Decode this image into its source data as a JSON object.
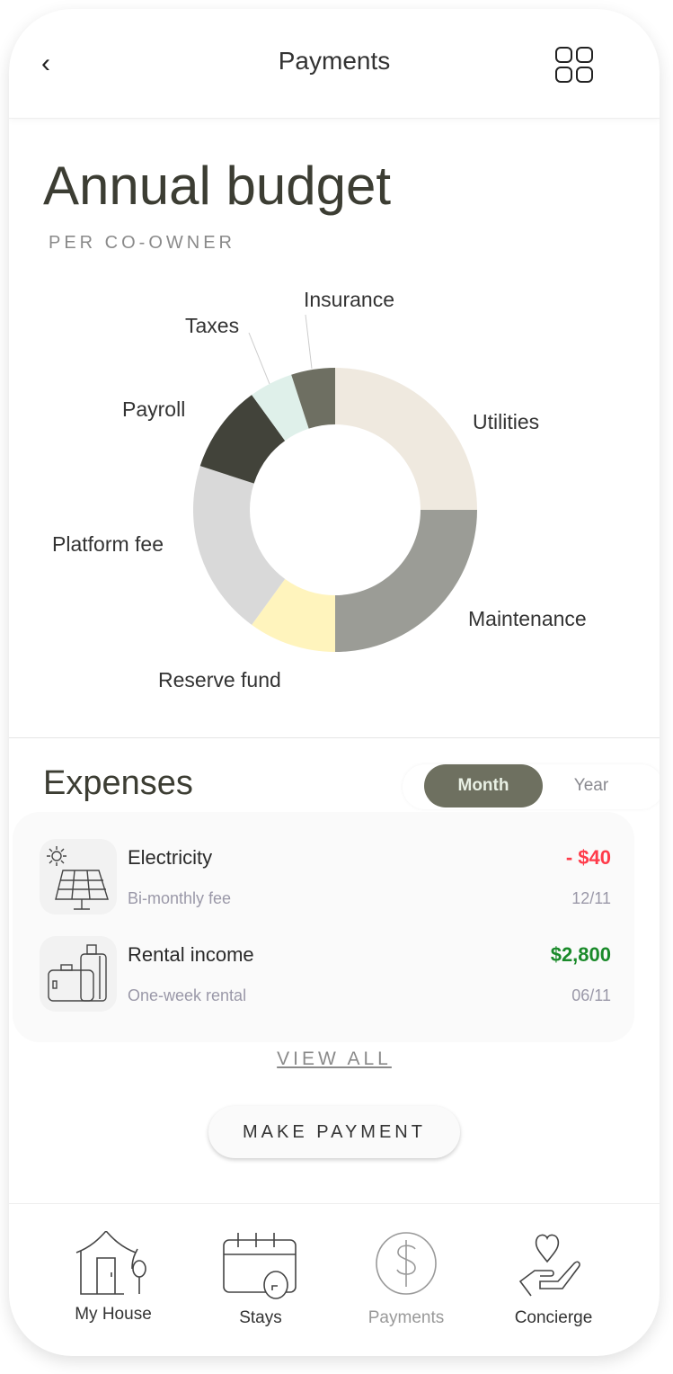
{
  "header": {
    "title": "Payments",
    "back_icon": "chevron-left-icon",
    "menu_icon": "grid-icon"
  },
  "budget": {
    "title": "Annual budget",
    "subtitle": "PER CO-OWNER"
  },
  "chart_data": {
    "type": "pie",
    "donut": true,
    "unit": "percent (estimated)",
    "categories": [
      "Utilities",
      "Maintenance",
      "Reserve fund",
      "Platform fee",
      "Payroll",
      "Taxes",
      "Insurance"
    ],
    "values": [
      25,
      25,
      10,
      20,
      10,
      5,
      5
    ],
    "colors": [
      "#efe9df",
      "#9b9c96",
      "#fff4bd",
      "#d9d9d9",
      "#42433a",
      "#dff0ea",
      "#6e6f62"
    ]
  },
  "expenses": {
    "title": "Expenses",
    "toggle": {
      "options": [
        "Month",
        "Year"
      ],
      "selected": "Month"
    },
    "items": [
      {
        "name": "Electricity",
        "desc": "Bi-monthly fee",
        "amount": "- $40",
        "date": "12/11",
        "amount_color": "#ff3b4a",
        "icon": "solar-panel-icon"
      },
      {
        "name": "Rental income",
        "desc": "One-week rental",
        "amount": "$2,800",
        "date": "06/11",
        "amount_color": "#1a8a2a",
        "icon": "luggage-icon"
      }
    ],
    "view_all": "VIEW ALL",
    "make_payment": "MAKE PAYMENT"
  },
  "nav": {
    "items": [
      {
        "label": "My House",
        "icon": "house-icon",
        "active": false
      },
      {
        "label": "Stays",
        "icon": "calendar-icon",
        "active": false
      },
      {
        "label": "Payments",
        "icon": "dollar-coin-icon",
        "active": true
      },
      {
        "label": "Concierge",
        "icon": "heart-hand-icon",
        "active": false
      }
    ]
  }
}
